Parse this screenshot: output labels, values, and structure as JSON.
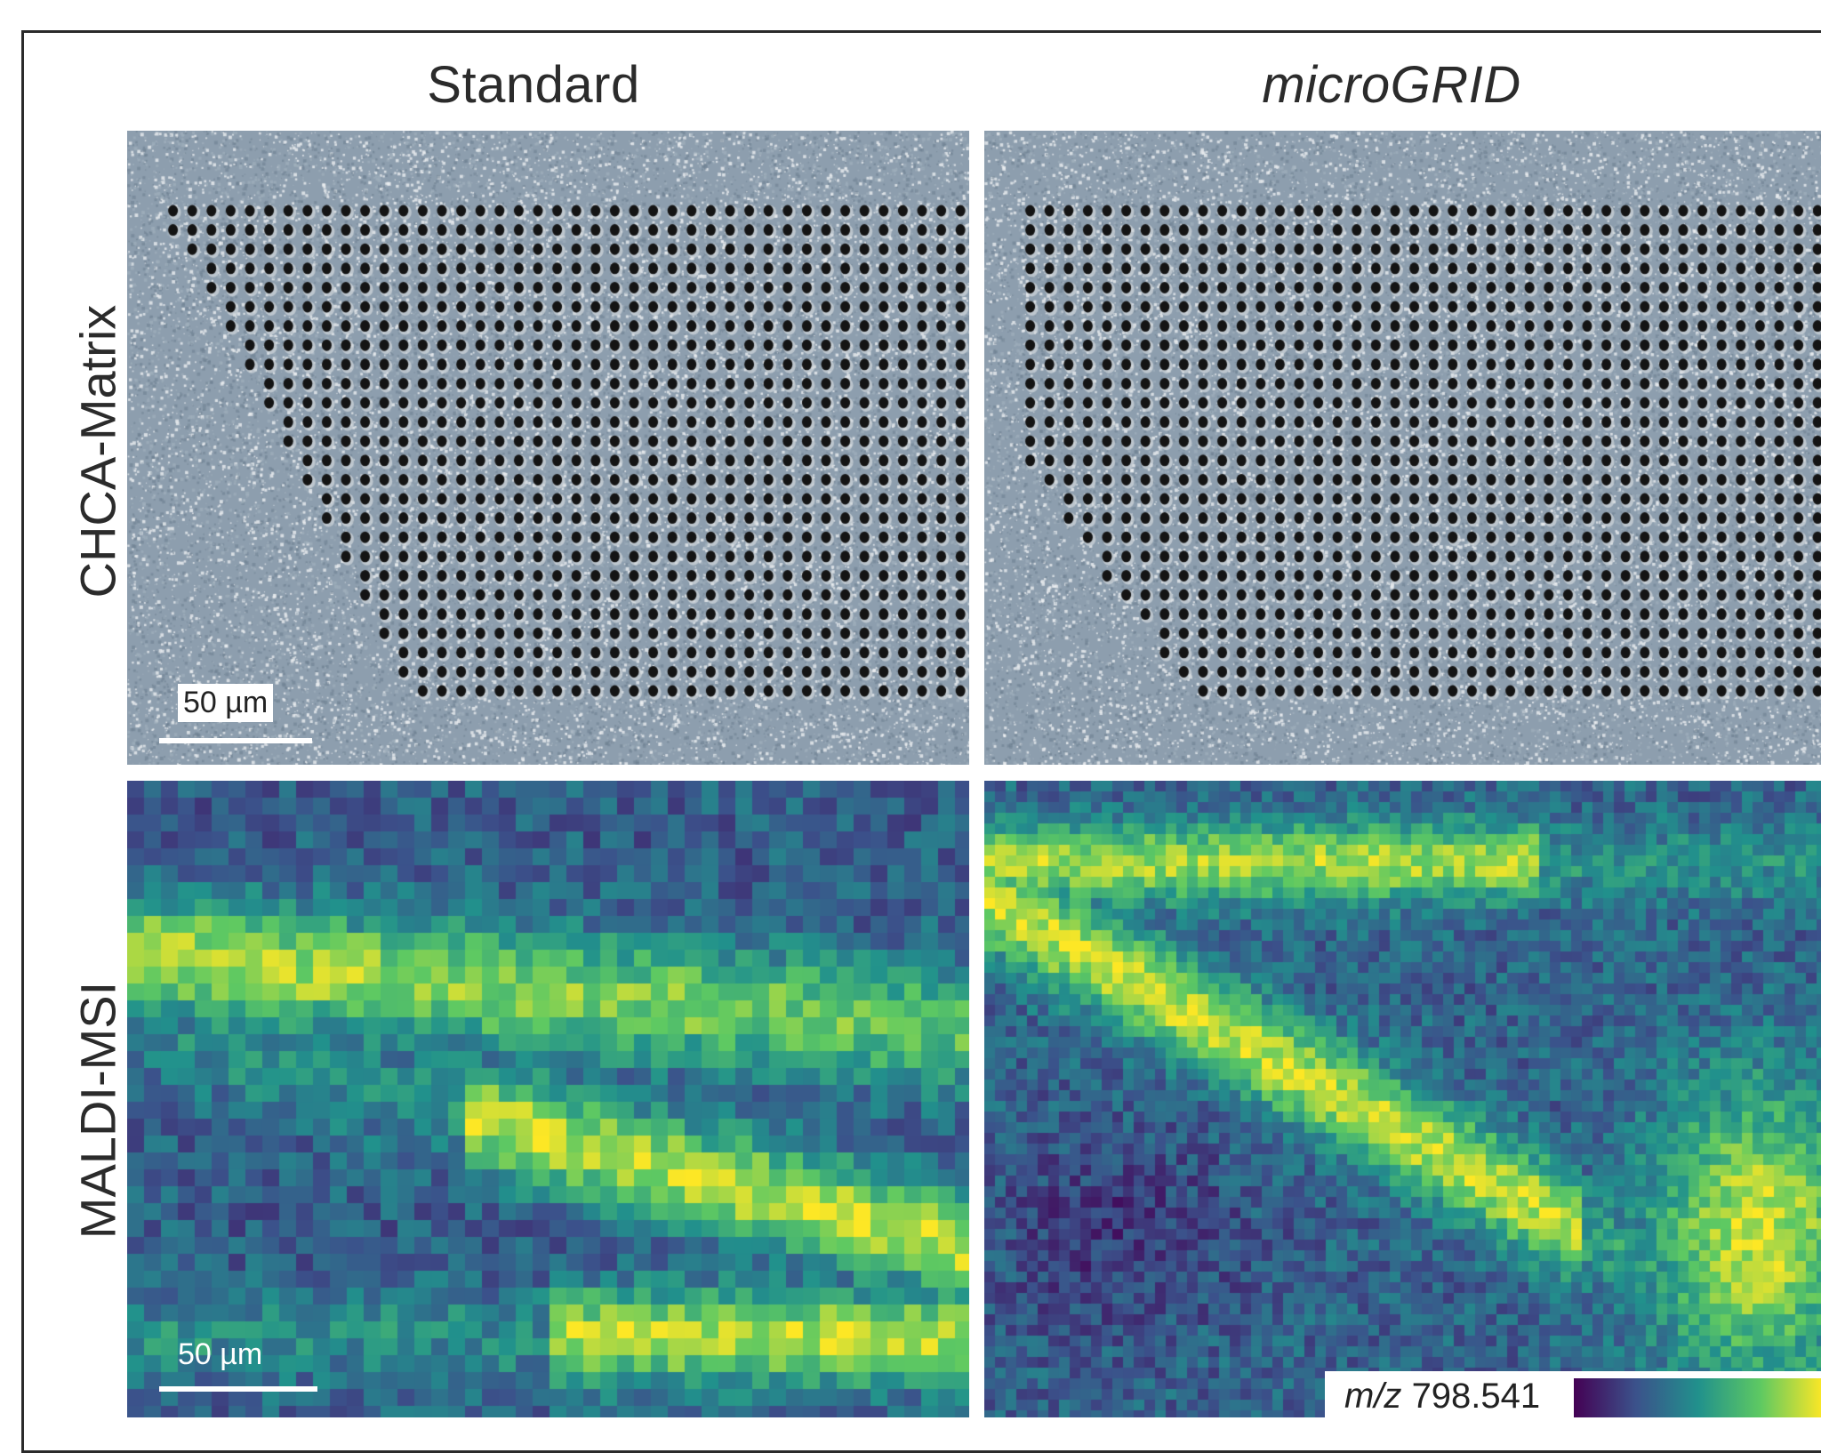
{
  "columns": {
    "standard": "Standard",
    "microgrid": "microGRID"
  },
  "rows": {
    "optical": "CHCA-Matrix",
    "msi": "MALDI-MSI"
  },
  "scale_bars": {
    "optical": "50 µm",
    "msi": "50 µm"
  },
  "colorbar": {
    "prefix": "m/z",
    "value": "798.541",
    "colormap": "viridis"
  },
  "colors": {
    "matrix_background": "#8e9fae",
    "ablation_crater": "#121212",
    "viridis_low": "#440154",
    "viridis_high": "#fde725"
  },
  "icons": {
    "optical_panels": "optical-micrograph-image",
    "msi_panels": "ion-intensity-heatmap-image"
  }
}
